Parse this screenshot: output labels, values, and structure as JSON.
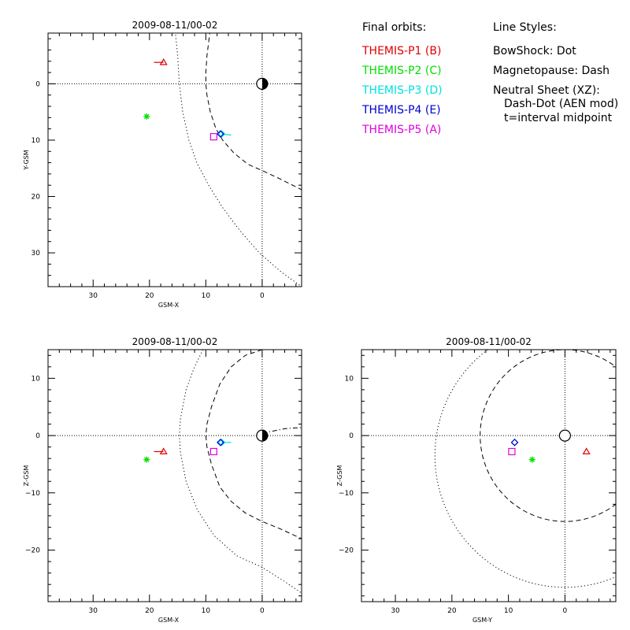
{
  "legend": {
    "orbits_title": "Final orbits:",
    "styles_title": "Line Styles:",
    "probes": [
      {
        "label": "THEMIS-P1 (B)",
        "color": "#e00000"
      },
      {
        "label": "THEMIS-P2 (C)",
        "color": "#00e000"
      },
      {
        "label": "THEMIS-P3 (D)",
        "color": "#00e0e0"
      },
      {
        "label": "THEMIS-P4 (E)",
        "color": "#0000d0"
      },
      {
        "label": "THEMIS-P5 (A)",
        "color": "#e000e0"
      }
    ],
    "styles": [
      "BowShock: Dot",
      "Magnetopause: Dash",
      "Neutral Sheet (XZ):",
      "Dash-Dot (AEN mod)",
      "t=interval midpoint"
    ]
  },
  "chart_data": [
    {
      "type": "scatter",
      "title": "2009-08-11/00-02",
      "xlabel": "GSM-X",
      "ylabel": "Y-GSM",
      "xlim": [
        38,
        -7
      ],
      "ylim": [
        -9,
        36
      ],
      "xticks": [
        30,
        20,
        10,
        0
      ],
      "yticks": [
        0,
        10,
        20,
        30
      ],
      "series": [
        {
          "name": "THEMIS-P1 (B)",
          "color": "#e00000",
          "marker": "triangle",
          "x": 17.5,
          "y": -3.8,
          "tail": [
            19.2,
            -3.8
          ]
        },
        {
          "name": "THEMIS-P2 (C)",
          "color": "#00e000",
          "marker": "asterisk",
          "x": 20.5,
          "y": 5.8,
          "tail": null
        },
        {
          "name": "THEMIS-P3 (D)",
          "color": "#00e0e0",
          "marker": "diamond",
          "x": 7.2,
          "y": 8.9,
          "tail": [
            5.5,
            9.1
          ]
        },
        {
          "name": "THEMIS-P4 (E)",
          "color": "#0000d0",
          "marker": "diamond",
          "x": 7.4,
          "y": 8.9,
          "tail": null
        },
        {
          "name": "THEMIS-P5 (A)",
          "color": "#e000e0",
          "marker": "square",
          "x": 8.6,
          "y": 9.4,
          "tail": null
        }
      ],
      "curves": [
        {
          "kind": "bowshock",
          "style": "dot",
          "points": [
            [
              15.7,
              -11
            ],
            [
              15.4,
              -9
            ],
            [
              15,
              -5
            ],
            [
              14.7,
              0
            ],
            [
              14.1,
              5
            ],
            [
              13,
              10
            ],
            [
              11.6,
              14
            ],
            [
              9.5,
              18
            ],
            [
              7,
              22
            ],
            [
              4,
              26
            ],
            [
              0.5,
              30
            ],
            [
              -3.5,
              33.5
            ],
            [
              -7,
              36
            ]
          ]
        },
        {
          "kind": "magnetopause",
          "style": "dash",
          "points": [
            [
              9.1,
              -11
            ],
            [
              9.3,
              -9
            ],
            [
              9.8,
              -5
            ],
            [
              10,
              -2
            ],
            [
              10,
              0
            ],
            [
              9.8,
              2
            ],
            [
              9.2,
              5
            ],
            [
              8.2,
              8
            ],
            [
              7,
              10
            ],
            [
              5,
              12.3
            ],
            [
              2.5,
              14.3
            ],
            [
              0,
              15.4
            ],
            [
              -3,
              16.8
            ],
            [
              -7,
              18.8
            ]
          ]
        }
      ]
    },
    {
      "type": "scatter",
      "title": "2009-08-11/00-02",
      "xlabel": "GSM-X",
      "ylabel": "Z-GSM",
      "xlim": [
        38,
        -7
      ],
      "ylim": [
        -29,
        15
      ],
      "xticks": [
        30,
        20,
        10,
        0
      ],
      "yticks": [
        10,
        0,
        -10,
        -20
      ],
      "series": [
        {
          "name": "THEMIS-P1 (B)",
          "color": "#e00000",
          "marker": "triangle",
          "x": 17.5,
          "y": -2.8,
          "tail": [
            19.2,
            -2.8
          ]
        },
        {
          "name": "THEMIS-P2 (C)",
          "color": "#00e000",
          "marker": "asterisk",
          "x": 20.5,
          "y": -4.2,
          "tail": null
        },
        {
          "name": "THEMIS-P3 (D)",
          "color": "#00e0e0",
          "marker": "diamond",
          "x": 7.2,
          "y": -1.2,
          "tail": [
            5.5,
            -1.2
          ]
        },
        {
          "name": "THEMIS-P4 (E)",
          "color": "#0000d0",
          "marker": "diamond",
          "x": 7.4,
          "y": -1.2,
          "tail": null
        },
        {
          "name": "THEMIS-P5 (A)",
          "color": "#e000e0",
          "marker": "square",
          "x": 8.6,
          "y": -2.8,
          "tail": null
        }
      ],
      "curves": [
        {
          "kind": "bowshock",
          "style": "dot",
          "points": [
            [
              10.5,
              15
            ],
            [
              12,
              12
            ],
            [
              13.5,
              8
            ],
            [
              14.5,
              3
            ],
            [
              14.7,
              0
            ],
            [
              14.5,
              -3
            ],
            [
              13.5,
              -8
            ],
            [
              11.5,
              -13
            ],
            [
              8.5,
              -17.5
            ],
            [
              4.5,
              -21
            ],
            [
              0,
              -23
            ],
            [
              -4,
              -25.5
            ],
            [
              -7,
              -27.5
            ]
          ]
        },
        {
          "kind": "magnetopause",
          "style": "dash",
          "points": [
            [
              0,
              15
            ],
            [
              3,
              14
            ],
            [
              5.5,
              12
            ],
            [
              7.5,
              9
            ],
            [
              9,
              5
            ],
            [
              9.8,
              2
            ],
            [
              10,
              0
            ],
            [
              9.8,
              -2
            ],
            [
              9,
              -5
            ],
            [
              7.5,
              -9
            ],
            [
              5.5,
              -11.5
            ],
            [
              3,
              -13.5
            ],
            [
              0,
              -15
            ],
            [
              -3,
              -16.2
            ],
            [
              -7,
              -18
            ]
          ]
        },
        {
          "kind": "neutral-sheet",
          "style": "dashdot",
          "points": [
            [
              0,
              0.4
            ],
            [
              -2,
              0.8
            ],
            [
              -4,
              1.2
            ],
            [
              -7,
              1.4
            ]
          ]
        }
      ]
    },
    {
      "type": "scatter",
      "title": "2009-08-11/00-02",
      "xlabel": "GSM-Y",
      "ylabel": "Z-GSM",
      "xlim": [
        36,
        -9
      ],
      "ylim": [
        -29,
        15
      ],
      "xticks": [
        30,
        20,
        10,
        0
      ],
      "yticks": [
        10,
        0,
        -10,
        -20
      ],
      "series": [
        {
          "name": "THEMIS-P1 (B)",
          "color": "#e00000",
          "marker": "triangle",
          "x": -3.8,
          "y": -2.8,
          "tail": null
        },
        {
          "name": "THEMIS-P2 (C)",
          "color": "#00e000",
          "marker": "asterisk",
          "x": 5.8,
          "y": -4.2,
          "tail": null
        },
        {
          "name": "THEMIS-P3 (D)",
          "color": "#00e0e0",
          "marker": "diamond",
          "x": 8.9,
          "y": -1.2,
          "tail": null
        },
        {
          "name": "THEMIS-P4 (E)",
          "color": "#0000d0",
          "marker": "diamond",
          "x": 8.9,
          "y": -1.2,
          "tail": null
        },
        {
          "name": "THEMIS-P5 (A)",
          "color": "#e000e0",
          "marker": "square",
          "x": 9.4,
          "y": -2.8,
          "tail": null
        }
      ],
      "curves": [
        {
          "kind": "bowshock",
          "style": "dot",
          "center": [
            0,
            -3.5
          ],
          "radius": 23
        },
        {
          "kind": "magnetopause",
          "style": "dash",
          "center": [
            0,
            0
          ],
          "radius": 15
        }
      ]
    }
  ]
}
